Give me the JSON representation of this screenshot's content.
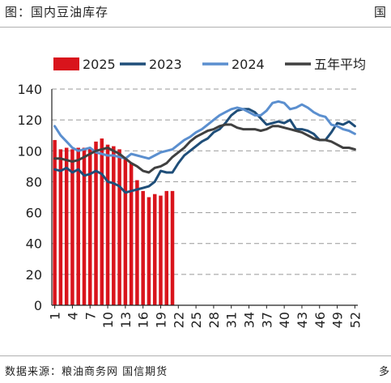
{
  "header": {
    "title": "图：国内豆油库存",
    "mark": "国"
  },
  "footer": {
    "source": "数据来源：粮油商务网 国信期货",
    "mark": "多"
  },
  "colors": {
    "s2025": "#d9141c",
    "s2023": "#1f4e79",
    "s2024": "#5b8fcf",
    "avg": "#404040",
    "grid": "#999999",
    "axis": "#222222"
  },
  "chart_data": {
    "type": "bar+line",
    "title": "",
    "xlabel": "",
    "ylabel": "",
    "ylim": [
      0,
      140
    ],
    "yticks": [
      0,
      20,
      40,
      60,
      80,
      100,
      120,
      140
    ],
    "xlim": [
      1,
      52
    ],
    "xticks": [
      1,
      4,
      7,
      10,
      13,
      16,
      19,
      22,
      25,
      28,
      31,
      34,
      37,
      40,
      43,
      46,
      49,
      52
    ],
    "grid": "horizontal dashed",
    "legend_position": "top",
    "legend": [
      "2025",
      "2023",
      "2024",
      "五年平均"
    ],
    "bars": {
      "name": "2025",
      "x": [
        1,
        2,
        3,
        4,
        5,
        6,
        7,
        8,
        9,
        10,
        11,
        12,
        13,
        14,
        15,
        16,
        17,
        18,
        19,
        20,
        21
      ],
      "values": [
        107,
        101,
        102,
        101,
        102,
        102,
        102,
        106,
        108,
        104,
        103,
        101,
        96,
        92,
        81,
        74,
        70,
        72,
        71,
        74,
        74
      ]
    },
    "series": [
      {
        "name": "2023",
        "x": [
          1,
          2,
          3,
          4,
          5,
          6,
          7,
          8,
          9,
          10,
          11,
          12,
          13,
          14,
          15,
          16,
          17,
          18,
          19,
          20,
          21,
          22,
          23,
          24,
          25,
          26,
          27,
          28,
          29,
          30,
          31,
          32,
          33,
          34,
          35,
          36,
          37,
          38,
          39,
          40,
          41,
          42,
          43,
          44,
          45,
          46,
          47,
          48,
          49,
          50,
          51,
          52
        ],
        "values": [
          88,
          87,
          89,
          86,
          88,
          84,
          85,
          87,
          85,
          80,
          79,
          77,
          73,
          74,
          75,
          76,
          77,
          80,
          87,
          86,
          86,
          92,
          97,
          100,
          103,
          106,
          108,
          112,
          114,
          118,
          123,
          126,
          127,
          127,
          125,
          121,
          117,
          118,
          119,
          118,
          120,
          114,
          114,
          113,
          111,
          107,
          107,
          112,
          118,
          117,
          119,
          116
        ]
      },
      {
        "name": "2024",
        "x": [
          1,
          2,
          3,
          4,
          5,
          6,
          7,
          8,
          9,
          10,
          11,
          12,
          13,
          14,
          15,
          16,
          17,
          18,
          19,
          20,
          21,
          22,
          23,
          24,
          25,
          26,
          27,
          28,
          29,
          30,
          31,
          32,
          33,
          34,
          35,
          36,
          37,
          38,
          39,
          40,
          41,
          42,
          43,
          44,
          45,
          46,
          47,
          48,
          49,
          50,
          51,
          52
        ],
        "values": [
          116,
          110,
          106,
          102,
          100,
          101,
          102,
          99,
          98,
          97,
          97,
          96,
          95,
          98,
          97,
          96,
          95,
          97,
          99,
          100,
          101,
          104,
          107,
          109,
          112,
          114,
          117,
          120,
          123,
          125,
          127,
          128,
          127,
          125,
          123,
          123,
          126,
          131,
          132,
          131,
          127,
          128,
          130,
          128,
          125,
          123,
          122,
          117,
          116,
          114,
          113,
          111
        ]
      },
      {
        "name": "五年平均",
        "x": [
          1,
          2,
          3,
          4,
          5,
          6,
          7,
          8,
          9,
          10,
          11,
          12,
          13,
          14,
          15,
          16,
          17,
          18,
          19,
          20,
          21,
          22,
          23,
          24,
          25,
          26,
          27,
          28,
          29,
          30,
          31,
          32,
          33,
          34,
          35,
          36,
          37,
          38,
          39,
          40,
          41,
          42,
          43,
          44,
          45,
          46,
          47,
          48,
          49,
          50,
          51,
          52
        ],
        "values": [
          95,
          95,
          94,
          93,
          94,
          96,
          98,
          100,
          101,
          102,
          100,
          98,
          95,
          92,
          90,
          87,
          86,
          89,
          90,
          92,
          96,
          99,
          102,
          106,
          109,
          111,
          113,
          114,
          116,
          117,
          117,
          115,
          114,
          114,
          114,
          113,
          114,
          116,
          116,
          115,
          114,
          113,
          112,
          110,
          108,
          107,
          107,
          106,
          104,
          102,
          102,
          101
        ]
      }
    ]
  }
}
